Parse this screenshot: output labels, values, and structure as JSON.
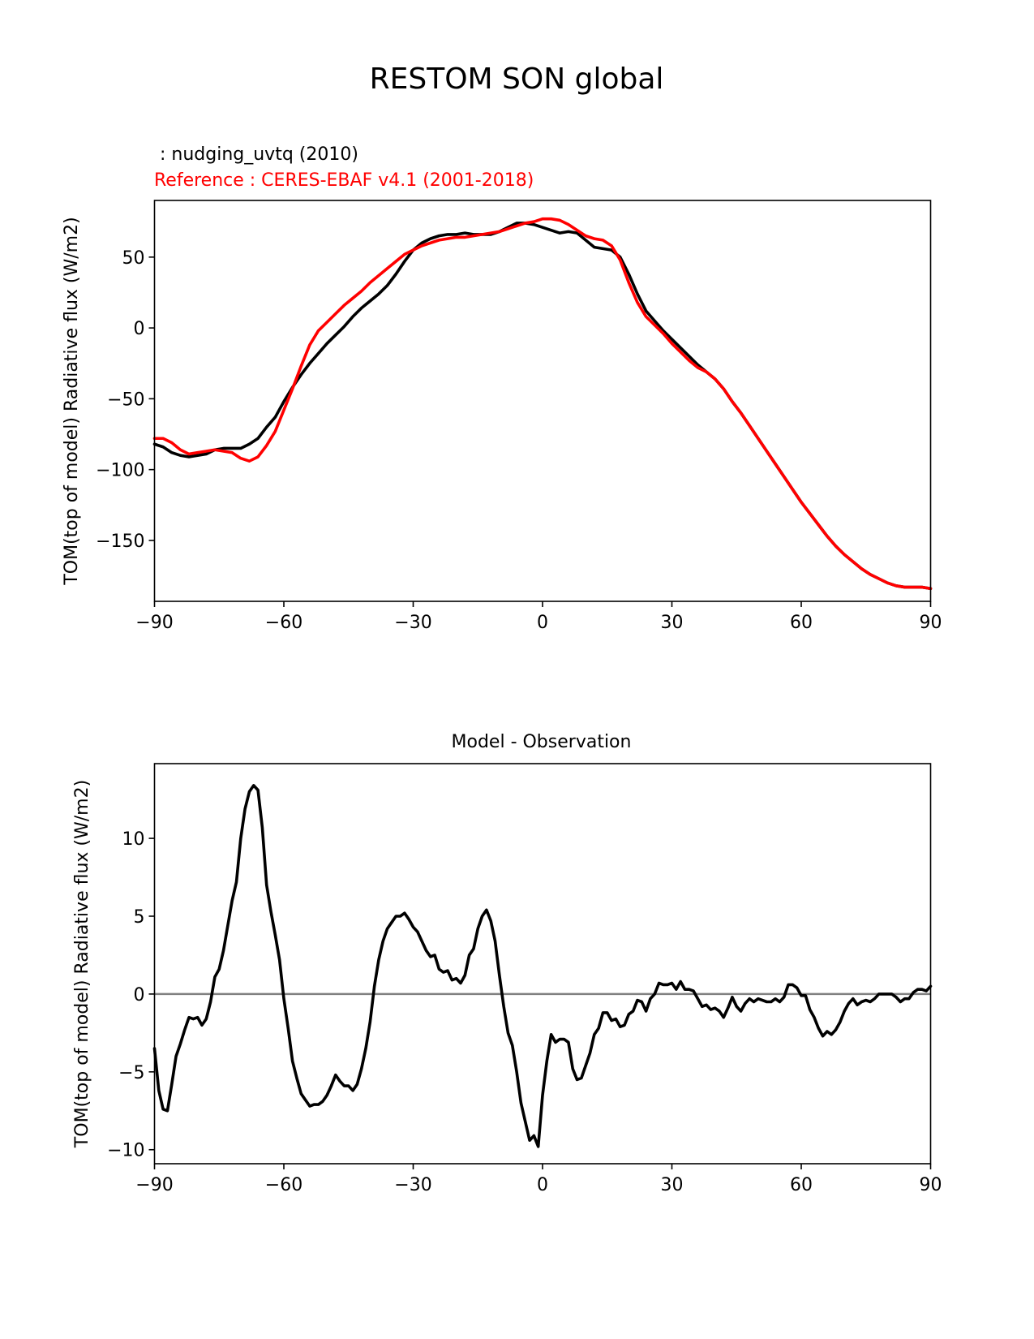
{
  "figure": {
    "suptitle": "RESTOM SON global",
    "test_label": " : nudging_uvtq (2010)",
    "ref_label": "Reference : CERES-EBAF v4.1 (2001-2018)"
  },
  "colors": {
    "model": "#000000",
    "reference": "#ff0000",
    "zero_line": "#808080",
    "axis": "#000000"
  },
  "chart_data": [
    {
      "type": "line",
      "title": "",
      "xlabel": "",
      "ylabel": "TOM(top of model) Radiative flux (W/m2)",
      "xlim": [
        -90,
        90
      ],
      "ylim": [
        -193,
        90
      ],
      "xticks": [
        -90,
        -60,
        -30,
        0,
        30,
        60,
        90
      ],
      "xtick_labels": [
        "−90",
        "−60",
        "−30",
        "0",
        "30",
        "60",
        "90"
      ],
      "yticks": [
        50,
        0,
        -50,
        -100,
        -150
      ],
      "ytick_labels": [
        "50",
        "0",
        "−50",
        "−100",
        "−150"
      ],
      "grid": false,
      "series": [
        {
          "name": "nudging_uvtq (2010)",
          "color": "#000000",
          "x": [
            -90,
            -88,
            -86,
            -84,
            -82,
            -80,
            -78,
            -76,
            -74,
            -72,
            -70,
            -68,
            -66,
            -64,
            -62,
            -60,
            -58,
            -56,
            -54,
            -52,
            -50,
            -48,
            -46,
            -44,
            -42,
            -40,
            -38,
            -36,
            -34,
            -32,
            -30,
            -28,
            -26,
            -24,
            -22,
            -20,
            -18,
            -16,
            -14,
            -12,
            -10,
            -8,
            -6,
            -4,
            -2,
            0,
            2,
            4,
            6,
            8,
            10,
            12,
            14,
            16,
            18,
            20,
            22,
            24,
            26,
            28,
            30,
            32,
            34,
            36,
            38,
            40,
            42,
            44,
            46,
            48,
            50,
            52,
            54,
            56,
            58,
            60,
            62,
            64,
            66,
            68,
            70,
            72,
            74,
            76,
            78,
            80,
            82,
            84,
            86,
            88,
            90
          ],
          "y": [
            -82,
            -84,
            -88,
            -90,
            -91,
            -90,
            -89,
            -86,
            -85,
            -85,
            -85,
            -82,
            -78,
            -70,
            -63,
            -52,
            -42,
            -33,
            -25,
            -18,
            -11,
            -5,
            1,
            8,
            14,
            19,
            24,
            30,
            38,
            47,
            55,
            60,
            63,
            65,
            66,
            66,
            67,
            66,
            66,
            66,
            68,
            71,
            74,
            74,
            73,
            71,
            69,
            67,
            68,
            67,
            62,
            57,
            56,
            55,
            50,
            38,
            24,
            12,
            5,
            -2,
            -8,
            -14,
            -20,
            -26,
            -31,
            -36,
            -43,
            -52,
            -60,
            -69,
            -78,
            -87,
            -96,
            -105,
            -114,
            -123,
            -131,
            -139,
            -147,
            -154,
            -160,
            -165,
            -170,
            -174,
            -177,
            -180,
            -182,
            -183,
            -183,
            -183,
            -184
          ]
        },
        {
          "name": "CERES-EBAF v4.1 (2001-2018)",
          "color": "#ff0000",
          "x": [
            -90,
            -88,
            -86,
            -84,
            -82,
            -80,
            -78,
            -76,
            -74,
            -72,
            -70,
            -68,
            -66,
            -64,
            -62,
            -60,
            -58,
            -56,
            -54,
            -52,
            -50,
            -48,
            -46,
            -44,
            -42,
            -40,
            -38,
            -36,
            -34,
            -32,
            -30,
            -28,
            -26,
            -24,
            -22,
            -20,
            -18,
            -16,
            -14,
            -12,
            -10,
            -8,
            -6,
            -4,
            -2,
            0,
            2,
            4,
            6,
            8,
            10,
            12,
            14,
            16,
            18,
            20,
            22,
            24,
            26,
            28,
            30,
            32,
            34,
            36,
            38,
            40,
            42,
            44,
            46,
            48,
            50,
            52,
            54,
            56,
            58,
            60,
            62,
            64,
            66,
            68,
            70,
            72,
            74,
            76,
            78,
            80,
            82,
            84,
            86,
            88,
            90
          ],
          "y": [
            -78,
            -78,
            -81,
            -86,
            -89,
            -88,
            -87,
            -86,
            -87,
            -88,
            -92,
            -94,
            -91,
            -83,
            -73,
            -58,
            -43,
            -27,
            -12,
            -2,
            4,
            10,
            16,
            21,
            26,
            32,
            37,
            42,
            47,
            52,
            55,
            58,
            60,
            62,
            63,
            64,
            64,
            65,
            66,
            67,
            68,
            70,
            72,
            74,
            75,
            77,
            77,
            76,
            73,
            69,
            65,
            63,
            62,
            58,
            48,
            32,
            18,
            8,
            2,
            -4,
            -11,
            -17,
            -23,
            -28,
            -31,
            -36,
            -43,
            -52,
            -60,
            -69,
            -78,
            -87,
            -96,
            -105,
            -114,
            -123,
            -131,
            -139,
            -147,
            -154,
            -160,
            -165,
            -170,
            -174,
            -177,
            -180,
            -182,
            -183,
            -183,
            -183,
            -184
          ]
        }
      ]
    },
    {
      "type": "line",
      "title": "Model - Observation",
      "xlabel": "",
      "ylabel": "TOM(top of model) Radiative flux (W/m2)",
      "xlim": [
        -90,
        90
      ],
      "ylim": [
        -10.9,
        14.8
      ],
      "xticks": [
        -90,
        -60,
        -30,
        0,
        30,
        60,
        90
      ],
      "xtick_labels": [
        "−90",
        "−60",
        "−30",
        "0",
        "30",
        "60",
        "90"
      ],
      "yticks": [
        10,
        5,
        0,
        -5,
        -10
      ],
      "ytick_labels": [
        "10",
        "5",
        "0",
        "−5",
        "−10"
      ],
      "grid": false,
      "zero_line": 0,
      "series": [
        {
          "name": "",
          "color": "#000000",
          "x": [
            -90,
            -89,
            -88,
            -87,
            -86,
            -85,
            -84,
            -83,
            -82,
            -81,
            -80,
            -79,
            -78,
            -77,
            -76,
            -75,
            -74,
            -73,
            -72,
            -71,
            -70,
            -69,
            -68,
            -67,
            -66,
            -65,
            -64,
            -63,
            -62,
            -61,
            -60,
            -59,
            -58,
            -57,
            -56,
            -55,
            -54,
            -53,
            -52,
            -51,
            -50,
            -49,
            -48,
            -47,
            -46,
            -45,
            -44,
            -43,
            -42,
            -41,
            -40,
            -39,
            -38,
            -37,
            -36,
            -35,
            -34,
            -33,
            -32,
            -31,
            -30,
            -29,
            -28,
            -27,
            -26,
            -25,
            -24,
            -23,
            -22,
            -21,
            -20,
            -19,
            -18,
            -17,
            -16,
            -15,
            -14,
            -13,
            -12,
            -11,
            -10,
            -9,
            -8,
            -7,
            -6,
            -5,
            -4,
            -3,
            -2,
            -1,
            0,
            1,
            2,
            3,
            4,
            5,
            6,
            7,
            8,
            9,
            10,
            11,
            12,
            13,
            14,
            15,
            16,
            17,
            18,
            19,
            20,
            21,
            22,
            23,
            24,
            25,
            26,
            27,
            28,
            29,
            30,
            31,
            32,
            33,
            34,
            35,
            36,
            37,
            38,
            39,
            40,
            41,
            42,
            43,
            44,
            45,
            46,
            47,
            48,
            49,
            50,
            51,
            52,
            53,
            54,
            55,
            56,
            57,
            58,
            59,
            60,
            61,
            62,
            63,
            64,
            65,
            66,
            67,
            68,
            69,
            70,
            71,
            72,
            73,
            74,
            75,
            76,
            77,
            78,
            79,
            80,
            81,
            82,
            83,
            84,
            85,
            86,
            87,
            88,
            89,
            90
          ],
          "y": [
            -3.5,
            -6.2,
            -7.4,
            -7.5,
            -5.8,
            -4.0,
            -3.2,
            -2.3,
            -1.5,
            -1.6,
            -1.5,
            -2.0,
            -1.6,
            -0.5,
            1.1,
            1.6,
            2.8,
            4.4,
            6.0,
            7.2,
            10.0,
            11.9,
            13.0,
            13.4,
            13.1,
            10.7,
            7.0,
            5.3,
            3.8,
            2.2,
            -0.3,
            -2.2,
            -4.3,
            -5.4,
            -6.4,
            -6.8,
            -7.2,
            -7.1,
            -7.1,
            -6.9,
            -6.5,
            -5.9,
            -5.2,
            -5.6,
            -5.9,
            -5.9,
            -6.2,
            -5.8,
            -4.8,
            -3.5,
            -1.8,
            0.5,
            2.2,
            3.4,
            4.2,
            4.6,
            5.0,
            5.0,
            5.2,
            4.8,
            4.3,
            4.0,
            3.4,
            2.8,
            2.4,
            2.5,
            1.6,
            1.4,
            1.5,
            0.9,
            1.0,
            0.7,
            1.2,
            2.5,
            2.9,
            4.2,
            5.0,
            5.4,
            4.7,
            3.4,
            1.2,
            -0.8,
            -2.5,
            -3.3,
            -5.0,
            -7.0,
            -8.2,
            -9.4,
            -9.1,
            -9.8,
            -6.5,
            -4.3,
            -2.6,
            -3.1,
            -2.9,
            -2.9,
            -3.1,
            -4.8,
            -5.5,
            -5.4,
            -4.6,
            -3.8,
            -2.6,
            -2.2,
            -1.2,
            -1.2,
            -1.7,
            -1.6,
            -2.1,
            -2.0,
            -1.3,
            -1.1,
            -0.4,
            -0.5,
            -1.1,
            -0.3,
            0.0,
            0.7,
            0.6,
            0.6,
            0.7,
            0.3,
            0.8,
            0.3,
            0.3,
            0.2,
            -0.3,
            -0.8,
            -0.7,
            -1.0,
            -0.9,
            -1.1,
            -1.5,
            -0.9,
            -0.2,
            -0.8,
            -1.1,
            -0.6,
            -0.3,
            -0.5,
            -0.3,
            -0.4,
            -0.5,
            -0.5,
            -0.3,
            -0.5,
            -0.2,
            0.6,
            0.6,
            0.4,
            -0.1,
            -0.1,
            -1.0,
            -1.5,
            -2.2,
            -2.7,
            -2.4,
            -2.6,
            -2.3,
            -1.8,
            -1.1,
            -0.6,
            -0.3,
            -0.7,
            -0.5,
            -0.4,
            -0.5,
            -0.3,
            0.0,
            0.0,
            0.0,
            0.0,
            -0.2,
            -0.5,
            -0.3,
            -0.3,
            0.1,
            0.3,
            0.3,
            0.2,
            0.5
          ]
        }
      ]
    }
  ]
}
